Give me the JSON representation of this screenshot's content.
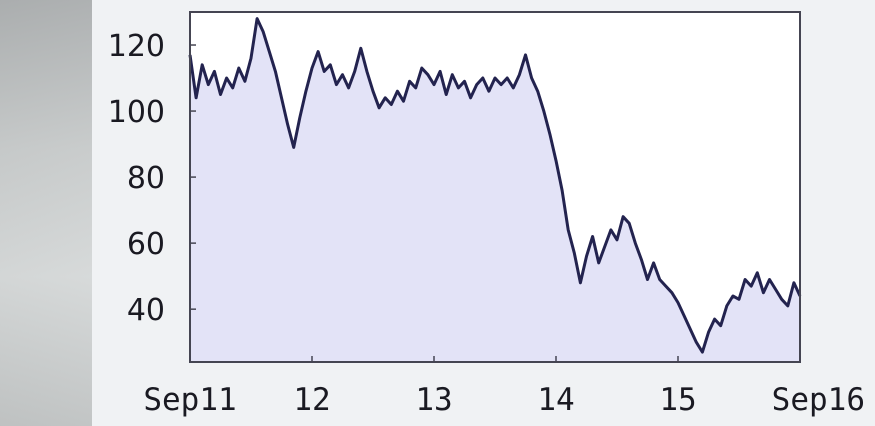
{
  "chart_data": {
    "type": "area",
    "title": "",
    "xlabel": "",
    "ylabel": "",
    "x_ticks": [
      {
        "x": 11,
        "label": "Sep11"
      },
      {
        "x": 12,
        "label": "12"
      },
      {
        "x": 13,
        "label": "13"
      },
      {
        "x": 14,
        "label": "14"
      },
      {
        "x": 15,
        "label": "15"
      },
      {
        "x": 16,
        "label": "Sep16"
      }
    ],
    "y_ticks": [
      {
        "y": 120,
        "label": "120"
      },
      {
        "y": 100,
        "label": "100"
      },
      {
        "y": 80,
        "label": "80"
      },
      {
        "y": 60,
        "label": "60"
      },
      {
        "y": 40,
        "label": "40"
      }
    ],
    "xlim": [
      11,
      16
    ],
    "ylim": [
      24,
      130
    ],
    "grid": false,
    "colors": {
      "line": "#23234f",
      "fill": "#e3e3f7",
      "plot_bg": "#ffffff",
      "frame": "#454552"
    },
    "series": [
      {
        "x": [
          11.0,
          11.05,
          11.1,
          11.15,
          11.2,
          11.25,
          11.3,
          11.35,
          11.4,
          11.45,
          11.5,
          11.55,
          11.6,
          11.65,
          11.7,
          11.75,
          11.8,
          11.85,
          11.9,
          11.95,
          12.0,
          12.05,
          12.1,
          12.15,
          12.2,
          12.25,
          12.3,
          12.35,
          12.4,
          12.45,
          12.5,
          12.55,
          12.6,
          12.65,
          12.7,
          12.75,
          12.8,
          12.85,
          12.9,
          12.95,
          13.0,
          13.05,
          13.1,
          13.15,
          13.2,
          13.25,
          13.3,
          13.35,
          13.4,
          13.45,
          13.5,
          13.55,
          13.6,
          13.65,
          13.7,
          13.75,
          13.8,
          13.85,
          13.9,
          13.95,
          14.0,
          14.05,
          14.1,
          14.15,
          14.2,
          14.25,
          14.3,
          14.35,
          14.4,
          14.45,
          14.5,
          14.55,
          14.6,
          14.65,
          14.7,
          14.75,
          14.8,
          14.85,
          14.9,
          14.95,
          15.0,
          15.05,
          15.1,
          15.15,
          15.2,
          15.25,
          15.3,
          15.35,
          15.4,
          15.45,
          15.5,
          15.55,
          15.6,
          15.65,
          15.7,
          15.75,
          15.8,
          15.85,
          15.9,
          15.95,
          16.0
        ],
        "values": [
          117,
          104,
          114,
          108,
          112,
          105,
          110,
          107,
          113,
          109,
          116,
          128,
          124,
          118,
          112,
          104,
          96,
          89,
          98,
          106,
          113,
          118,
          112,
          114,
          108,
          111,
          107,
          112,
          119,
          112,
          106,
          101,
          104,
          102,
          106,
          103,
          109,
          107,
          113,
          111,
          108,
          112,
          105,
          111,
          107,
          109,
          104,
          108,
          110,
          106,
          110,
          108,
          110,
          107,
          111,
          117,
          110,
          106,
          100,
          93,
          85,
          76,
          64,
          57,
          48,
          56,
          62,
          54,
          59,
          64,
          61,
          68,
          66,
          60,
          55,
          49,
          54,
          49,
          47,
          45,
          42,
          38,
          34,
          30,
          27,
          33,
          37,
          35,
          41,
          44,
          43,
          49,
          47,
          51,
          45,
          49,
          46,
          43,
          41,
          48,
          44
        ]
      }
    ]
  }
}
